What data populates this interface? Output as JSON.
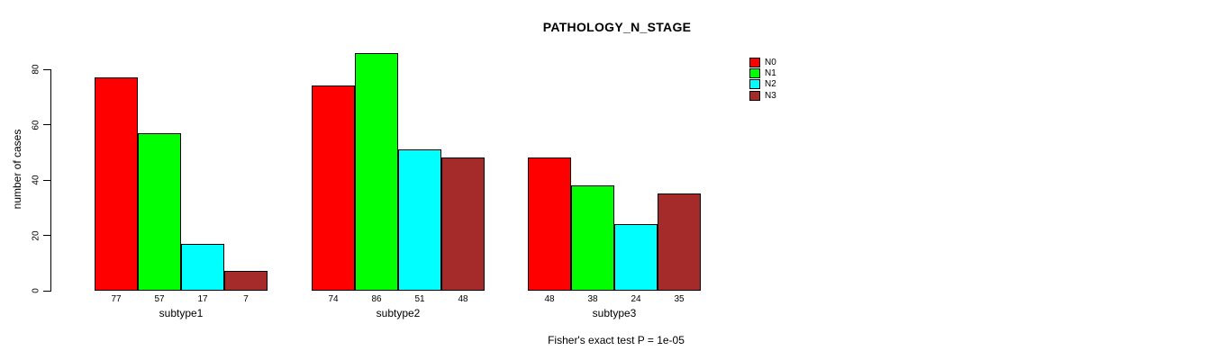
{
  "title": "PATHOLOGY_N_STAGE",
  "ylabel": "number of cases",
  "annotation": "Fisher's exact test P = 1e-05",
  "chart_data": {
    "type": "bar",
    "title": "PATHOLOGY_N_STAGE",
    "xlabel": "",
    "ylabel": "number of cases",
    "categories": [
      "subtype1",
      "subtype2",
      "subtype3"
    ],
    "series": [
      {
        "name": "N0",
        "color": "#FF0000",
        "values": [
          77,
          74,
          48
        ]
      },
      {
        "name": "N1",
        "color": "#00FF00",
        "values": [
          57,
          86,
          38
        ]
      },
      {
        "name": "N2",
        "color": "#00FFFF",
        "values": [
          17,
          51,
          24
        ]
      },
      {
        "name": "N3",
        "color": "#A52A2A",
        "values": [
          7,
          48,
          35
        ]
      }
    ],
    "yticks": [
      0,
      20,
      40,
      60,
      80
    ],
    "ylim": [
      0,
      86
    ],
    "grid": false,
    "bar_value_labels": true,
    "legend_position": "top-right",
    "annotation": "Fisher's exact test P = 1e-05"
  }
}
